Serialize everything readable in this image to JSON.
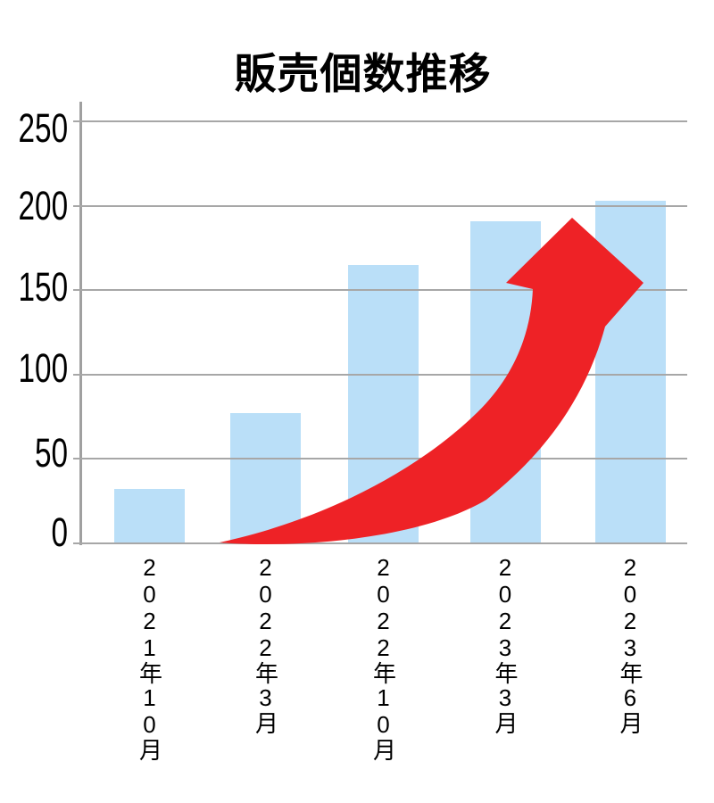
{
  "chart_data": {
    "type": "bar",
    "title": "販売個数推移",
    "categories": [
      "2021年10月",
      "2022年3月",
      "2022年10月",
      "2023年3月",
      "2023年6月"
    ],
    "values": [
      32,
      77,
      165,
      191,
      203
    ],
    "y_ticks": [
      0,
      50,
      100,
      150,
      200,
      250
    ],
    "ylim": [
      0,
      250
    ],
    "xlabel": "",
    "ylabel": "",
    "grid": "horizontal",
    "legend": "none",
    "colors": {
      "bar": "#badff8",
      "gridline": "#a7a7a7",
      "axis": "#a0a0a0",
      "text": "#000000",
      "arrow": "#ee2226",
      "background": "#ffffff"
    },
    "annotation": {
      "type": "growth-arrow",
      "description": "red curved arrow rising from the first bar to the last bar"
    }
  }
}
